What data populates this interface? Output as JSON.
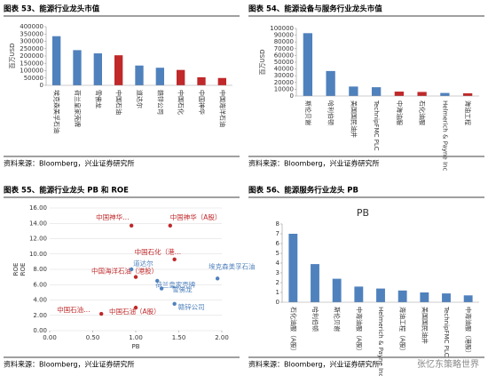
{
  "chart_data": [
    {
      "type": "bar",
      "title": "图表 53、能源行业龙头市值",
      "source": "资料来源：Bloomberg，兴业证券研究所",
      "ylabel": "百万USD",
      "categories": [
        "埃克森美孚石油",
        "荷兰皇家壳牌",
        "雪佛龙",
        "中国石油",
        "道达尔",
        "赣锌公司",
        "中国石化",
        "中国神华",
        "中国海洋石油"
      ],
      "values": [
        335000,
        240000,
        218000,
        205000,
        135000,
        120000,
        105000,
        55000,
        50000
      ],
      "colors": [
        "#4f81bd",
        "#4f81bd",
        "#4f81bd",
        "#c0282a",
        "#4f81bd",
        "#4f81bd",
        "#c0282a",
        "#c0282a",
        "#c0282a"
      ],
      "ylim": [
        0,
        400000
      ],
      "yticks": [
        0,
        50000,
        100000,
        150000,
        200000,
        250000,
        300000,
        350000,
        400000
      ]
    },
    {
      "type": "bar",
      "title": "图表 54、能源设备与服务行业龙头市值",
      "source": "资料来源：Bloomberg，兴业证券研究所",
      "ylabel": "百万USD",
      "categories": [
        "斯伦贝谢",
        "哈利伯顿",
        "美国国民油井",
        "TechnipFMC PLC",
        "中海油服",
        "石化油服",
        "Helmerich & Payne Inc",
        "海油工程"
      ],
      "values": [
        93000,
        37000,
        14000,
        13000,
        6500,
        6000,
        4500,
        4000
      ],
      "colors": [
        "#4f81bd",
        "#4f81bd",
        "#4f81bd",
        "#4f81bd",
        "#c0282a",
        "#c0282a",
        "#4f81bd",
        "#c0282a"
      ],
      "ylim": [
        0,
        100000
      ],
      "yticks": [
        0,
        10000,
        20000,
        30000,
        40000,
        50000,
        60000,
        70000,
        80000,
        90000,
        100000
      ]
    },
    {
      "type": "scatter",
      "title": "图表 55、能源行业龙头 PB 和 ROE",
      "source": "资料来源：Bloomberg，兴业证券研究所",
      "xlabel": "PB",
      "ylabel": "ROE",
      "points": [
        {
          "name": "中国神华…",
          "x": 0.95,
          "y": 13.7,
          "color": "#c0282a"
        },
        {
          "name": "中国神华（A股）",
          "x": 1.4,
          "y": 13.7,
          "color": "#c0282a"
        },
        {
          "name": "中国石化（港…",
          "x": 1.45,
          "y": 9.3,
          "color": "#c0282a"
        },
        {
          "name": "中国海洋石油（港股）",
          "x": 1.0,
          "y": 7.0,
          "color": "#c0282a"
        },
        {
          "name": "道达尔",
          "x": 0.95,
          "y": 8.0,
          "color": "#4f81bd"
        },
        {
          "name": "荷兰皇家壳牌",
          "x": 1.25,
          "y": 6.5,
          "color": "#4f81bd"
        },
        {
          "name": "埃克森美孚石油",
          "x": 1.95,
          "y": 6.8,
          "color": "#4f81bd"
        },
        {
          "name": "雪佛龙",
          "x": 1.3,
          "y": 5.5,
          "color": "#4f81bd"
        },
        {
          "name": "中国石油…",
          "x": 0.6,
          "y": 2.2,
          "color": "#c0282a"
        },
        {
          "name": "中国石油（A股）",
          "x": 1.0,
          "y": 3.0,
          "color": "#c0282a"
        },
        {
          "name": "赣锌公司",
          "x": 1.45,
          "y": 3.5,
          "color": "#4f81bd"
        }
      ],
      "xlim": [
        0,
        2
      ],
      "xticks": [
        {
          "value": 0,
          "label": "0.00"
        },
        {
          "value": 0.5,
          "label": "0.50"
        },
        {
          "value": 1,
          "label": "1.00"
        },
        {
          "value": 1.5,
          "label": "1.50"
        },
        {
          "value": 2,
          "label": "2.00"
        }
      ],
      "ylim": [
        0,
        16
      ],
      "yticks": [
        {
          "value": 0,
          "label": "0.00"
        },
        {
          "value": 2,
          "label": "2.00"
        },
        {
          "value": 4,
          "label": "4.00"
        },
        {
          "value": 6,
          "label": "6.00"
        },
        {
          "value": 8,
          "label": "8.00"
        },
        {
          "value": 10,
          "label": "10.00"
        },
        {
          "value": 12,
          "label": "12.00"
        },
        {
          "value": 14,
          "label": "14.00"
        },
        {
          "value": 16,
          "label": "16.00"
        }
      ],
      "grid": true
    },
    {
      "type": "bar",
      "title": "图表 56、能源服务行业龙头 PB",
      "source": "资料来源：Bloomberg，兴业证券研究所",
      "plot_title": "PB",
      "categories": [
        "石化油服（A股）",
        "哈利伯顿",
        "斯伦贝谢",
        "中海油服（A股）",
        "Helmerich & Payne Inc",
        "海油工程（A股）",
        "美国国民油井",
        "TechnipFMC PLC",
        "中海油服（港股）"
      ],
      "values": [
        7.0,
        3.9,
        2.4,
        1.6,
        1.4,
        1.2,
        1.0,
        0.9,
        0.7
      ],
      "colors": [
        "#4f81bd",
        "#4f81bd",
        "#4f81bd",
        "#4f81bd",
        "#4f81bd",
        "#4f81bd",
        "#4f81bd",
        "#4f81bd",
        "#4f81bd"
      ],
      "ylim": [
        0,
        8
      ],
      "yticks": [
        0,
        1,
        2,
        3,
        4,
        5,
        6,
        7,
        8
      ]
    }
  ],
  "watermark": "张忆东策略世界"
}
